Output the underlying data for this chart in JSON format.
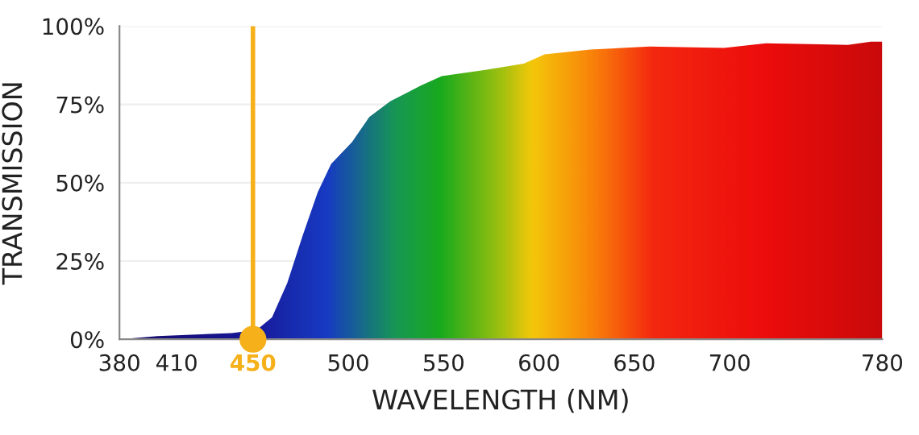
{
  "chart_data": {
    "type": "area",
    "xlabel": "WAVELENGTH (NM)",
    "ylabel": "TRANSMISSION",
    "x": [
      380,
      400,
      439,
      452,
      460,
      468,
      476,
      484,
      491,
      502,
      511,
      522,
      538,
      549,
      572,
      592,
      603,
      627,
      658,
      697,
      719,
      762,
      774,
      780
    ],
    "series": [
      {
        "values": [
          0,
          1,
          2,
          3,
          7,
          18,
          33,
          47,
          56,
          63,
          71,
          76,
          81,
          84,
          86,
          88,
          91,
          92.5,
          93.5,
          93,
          94.5,
          94,
          95,
          95
        ]
      }
    ],
    "xlim": [
      380,
      780
    ],
    "xticks": [
      380,
      410,
      450,
      500,
      550,
      600,
      650,
      700,
      780
    ],
    "ylim": [
      0,
      100
    ],
    "yticks": [
      {
        "value": 0,
        "label": "0%"
      },
      {
        "value": 25,
        "label": "25%"
      },
      {
        "value": 50,
        "label": "50%"
      },
      {
        "value": 75,
        "label": "75%"
      },
      {
        "value": 100,
        "label": "100%"
      }
    ],
    "ref_lines": [
      {
        "axis": "x",
        "value": 450,
        "label": null,
        "color": "#f5b01a"
      }
    ],
    "grid": "y",
    "legend": false
  }
}
